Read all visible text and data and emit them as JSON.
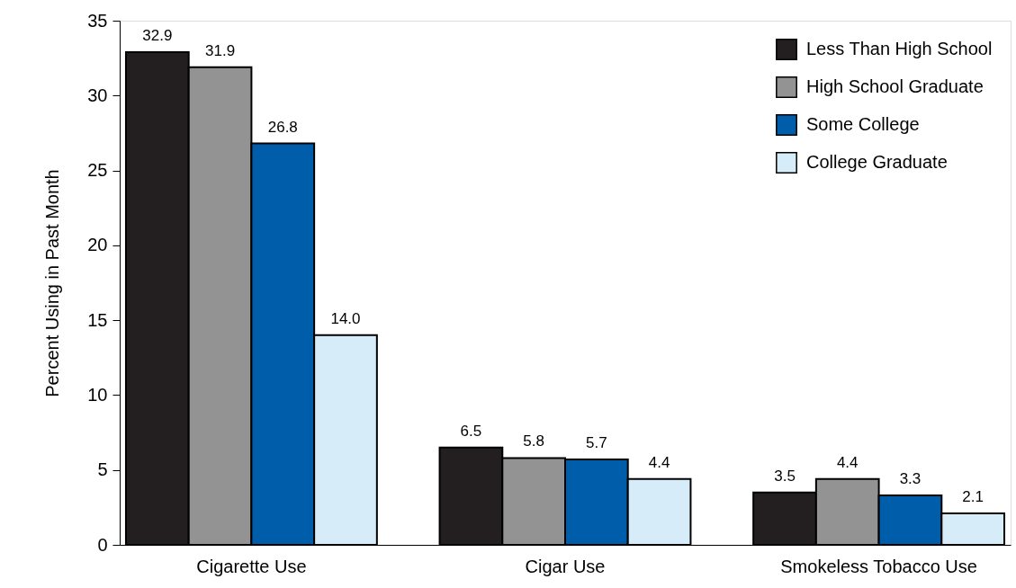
{
  "chart_data": {
    "type": "bar",
    "ylabel": "Percent Using in Past Month",
    "categories": [
      "Cigarette Use",
      "Cigar Use",
      "Smokeless Tobacco Use"
    ],
    "series": [
      {
        "name": "Less Than High School",
        "color": "#231f20",
        "values": [
          32.9,
          6.5,
          3.5
        ]
      },
      {
        "name": "High School Graduate",
        "color": "#939393",
        "values": [
          31.9,
          5.8,
          4.4
        ]
      },
      {
        "name": "Some College",
        "color": "#005daa",
        "values": [
          26.8,
          5.7,
          3.3
        ]
      },
      {
        "name": "College Graduate",
        "color": "#d6edf9",
        "values": [
          14.0,
          4.4,
          2.1
        ]
      }
    ],
    "ylim": [
      0,
      35
    ],
    "yticks": [
      0,
      5,
      10,
      15,
      20,
      25,
      30,
      35
    ],
    "value_labels": [
      [
        "32.9",
        "6.5",
        "3.5"
      ],
      [
        "31.9",
        "5.8",
        "4.4"
      ],
      [
        "26.8",
        "5.7",
        "3.3"
      ],
      [
        "14.0",
        "4.4",
        "2.1"
      ]
    ],
    "grid": false,
    "legend": "top right"
  }
}
